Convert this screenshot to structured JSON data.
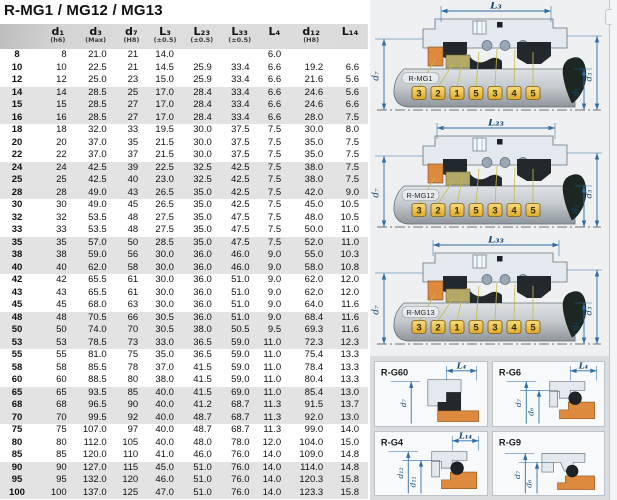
{
  "title": "R-MG1 / MG12 / MG13",
  "table": {
    "headers": [
      {
        "label": "",
        "note": ""
      },
      {
        "label": "d₁",
        "note": "(h6)"
      },
      {
        "label": "d₃",
        "note": "(Max)"
      },
      {
        "label": "d₇",
        "note": "(H8)"
      },
      {
        "label": "L₃",
        "note": "(±0.5)"
      },
      {
        "label": "L₂₃",
        "note": "(±0.5)"
      },
      {
        "label": "L₃₃",
        "note": "(±0.5)"
      },
      {
        "label": "L₄",
        "note": ""
      },
      {
        "label": "d₁₂",
        "note": "(H8)"
      },
      {
        "label": "L₁₄",
        "note": ""
      }
    ],
    "rows": [
      [
        "8",
        "8",
        "21.0",
        "21",
        "14.0",
        "",
        "",
        "6.0",
        "",
        ""
      ],
      [
        "10",
        "10",
        "22.5",
        "21",
        "14.5",
        "25.9",
        "33.4",
        "6.6",
        "19.2",
        "6.6"
      ],
      [
        "12",
        "12",
        "25.0",
        "23",
        "15.0",
        "25.9",
        "33.4",
        "6.6",
        "21.6",
        "5.6"
      ],
      [
        "14",
        "14",
        "28.5",
        "25",
        "17.0",
        "28.4",
        "33.4",
        "6.6",
        "24.6",
        "5.6"
      ],
      [
        "15",
        "15",
        "28.5",
        "27",
        "17.0",
        "28.4",
        "33.4",
        "6.6",
        "24.6",
        "6.6"
      ],
      [
        "16",
        "16",
        "28.5",
        "27",
        "17.0",
        "28.4",
        "33.4",
        "6.6",
        "28.0",
        "7.5"
      ],
      [
        "18",
        "18",
        "32.0",
        "33",
        "19.5",
        "30.0",
        "37.5",
        "7.5",
        "30.0",
        "8.0"
      ],
      [
        "20",
        "20",
        "37.0",
        "35",
        "21.5",
        "30.0",
        "37.5",
        "7.5",
        "35.0",
        "7.5"
      ],
      [
        "22",
        "22",
        "37.0",
        "37",
        "21.5",
        "30.0",
        "37.5",
        "7.5",
        "35.0",
        "7.5"
      ],
      [
        "24",
        "24",
        "42.5",
        "39",
        "22.5",
        "32.5",
        "42.5",
        "7.5",
        "38.0",
        "7.5"
      ],
      [
        "25",
        "25",
        "42.5",
        "40",
        "23.0",
        "32.5",
        "42.5",
        "7.5",
        "38.0",
        "7.5"
      ],
      [
        "28",
        "28",
        "49.0",
        "43",
        "26.5",
        "35.0",
        "42.5",
        "7.5",
        "42.0",
        "9.0"
      ],
      [
        "30",
        "30",
        "49.0",
        "45",
        "26.5",
        "35.0",
        "42.5",
        "7.5",
        "45.0",
        "10.5"
      ],
      [
        "32",
        "32",
        "53.5",
        "48",
        "27.5",
        "35.0",
        "47.5",
        "7.5",
        "48.0",
        "10.5"
      ],
      [
        "33",
        "33",
        "53.5",
        "48",
        "27.5",
        "35.0",
        "47.5",
        "7.5",
        "50.0",
        "11.0"
      ],
      [
        "35",
        "35",
        "57.0",
        "50",
        "28.5",
        "35.0",
        "47.5",
        "7.5",
        "52.0",
        "11.0"
      ],
      [
        "38",
        "38",
        "59.0",
        "56",
        "30.0",
        "36.0",
        "46.0",
        "9.0",
        "55.0",
        "10.3"
      ],
      [
        "40",
        "40",
        "62.0",
        "58",
        "30.0",
        "36.0",
        "46.0",
        "9.0",
        "58.0",
        "10.8"
      ],
      [
        "42",
        "42",
        "65.5",
        "61",
        "30.0",
        "36.0",
        "51.0",
        "9.0",
        "62.0",
        "12.0"
      ],
      [
        "43",
        "43",
        "65.5",
        "61",
        "30.0",
        "36.0",
        "51.0",
        "9.0",
        "62.0",
        "12.0"
      ],
      [
        "45",
        "45",
        "68.0",
        "63",
        "30.0",
        "36.0",
        "51.0",
        "9.0",
        "64.0",
        "11.6"
      ],
      [
        "48",
        "48",
        "70.5",
        "66",
        "30.5",
        "36.0",
        "51.0",
        "9.0",
        "68.4",
        "11.6"
      ],
      [
        "50",
        "50",
        "74.0",
        "70",
        "30.5",
        "38.0",
        "50.5",
        "9.5",
        "69.3",
        "11.6"
      ],
      [
        "53",
        "53",
        "78.5",
        "73",
        "33.0",
        "36.5",
        "59.0",
        "11.0",
        "72.3",
        "12.3"
      ],
      [
        "55",
        "55",
        "81.0",
        "75",
        "35.0",
        "36.5",
        "59.0",
        "11.0",
        "75.4",
        "13.3"
      ],
      [
        "58",
        "58",
        "85.5",
        "78",
        "37.0",
        "41.5",
        "59.0",
        "11.0",
        "78.4",
        "13.3"
      ],
      [
        "60",
        "60",
        "88.5",
        "80",
        "38.0",
        "41.5",
        "59.0",
        "11.0",
        "80.4",
        "13.3"
      ],
      [
        "65",
        "65",
        "93.5",
        "85",
        "40.0",
        "41.5",
        "69.0",
        "11.0",
        "85.4",
        "13.0"
      ],
      [
        "68",
        "68",
        "96.5",
        "90",
        "40.0",
        "41.2",
        "68.7",
        "11.3",
        "91.5",
        "13.7"
      ],
      [
        "70",
        "70",
        "99.5",
        "92",
        "40.0",
        "48.7",
        "68.7",
        "11.3",
        "92.0",
        "13.0"
      ],
      [
        "75",
        "75",
        "107.0",
        "97",
        "40.0",
        "48.7",
        "68.7",
        "11.3",
        "99.0",
        "14.0"
      ],
      [
        "80",
        "80",
        "112.0",
        "105",
        "40.0",
        "48.0",
        "78.0",
        "12.0",
        "104.0",
        "15.0"
      ],
      [
        "85",
        "85",
        "120.0",
        "110",
        "41.0",
        "46.0",
        "76.0",
        "14.0",
        "109.0",
        "14.8"
      ],
      [
        "90",
        "90",
        "127.0",
        "115",
        "45.0",
        "51.0",
        "76.0",
        "14.0",
        "114.0",
        "14.8"
      ],
      [
        "95",
        "95",
        "132.0",
        "120",
        "46.0",
        "51.0",
        "76.0",
        "14.0",
        "120.3",
        "15.8"
      ],
      [
        "100",
        "100",
        "137.0",
        "125",
        "47.0",
        "51.0",
        "76.0",
        "14.0",
        "123.3",
        "15.8"
      ]
    ]
  },
  "diagrams": [
    {
      "name": "R-MG1",
      "top_dim": "L₃",
      "left_dim": "d₇",
      "right_dims": [
        "d₁",
        "d₃"
      ],
      "callouts": [
        "3",
        "2",
        "1",
        "5",
        "3",
        "4",
        "5"
      ]
    },
    {
      "name": "R-MG12",
      "top_dim": "L₂₃",
      "left_dim": "d₇",
      "right_dims": [
        "d₁",
        "d₃"
      ],
      "callouts": [
        "3",
        "2",
        "1",
        "5",
        "3",
        "4",
        "5"
      ]
    },
    {
      "name": "R-MG13",
      "top_dim": "L₃₃",
      "left_dim": "d₇",
      "right_dims": [
        "d₁",
        "d₃"
      ],
      "callouts": [
        "3",
        "2",
        "1",
        "5",
        "3",
        "4",
        "5"
      ]
    }
  ],
  "details": [
    {
      "name": "R-G60",
      "top_dim": "L₄",
      "left_dims": [
        "d₇"
      ]
    },
    {
      "name": "R-G6",
      "top_dim": "L₄",
      "left_dims": [
        "d₇",
        "d₆"
      ]
    },
    {
      "name": "R-G4",
      "top_dim": "L₁₄",
      "left_dims": [
        "d₁₂",
        "d₁₁"
      ]
    },
    {
      "name": "R-G9",
      "top_dim": "",
      "left_dims": [
        "d₇",
        "d₆"
      ]
    }
  ],
  "colors": {
    "dimension_blue": "#2e6da8",
    "dimension_text": "#17486f",
    "callout_fill_top": "#f8dc78",
    "callout_fill_bottom": "#ddab2e",
    "callout_border": "#7a5c16",
    "callout_text": "#3a2b05",
    "leader_yellow": "#c9b94e",
    "part_orange": "#dd8a3f",
    "part_olive": "#b2a868",
    "part_dark": "#23282c",
    "housing_light": "#e3e9ee",
    "outline_gray": "#68737e",
    "header_gray": "#d8d8d8",
    "row_alt_gray": "#e3e3e3"
  }
}
